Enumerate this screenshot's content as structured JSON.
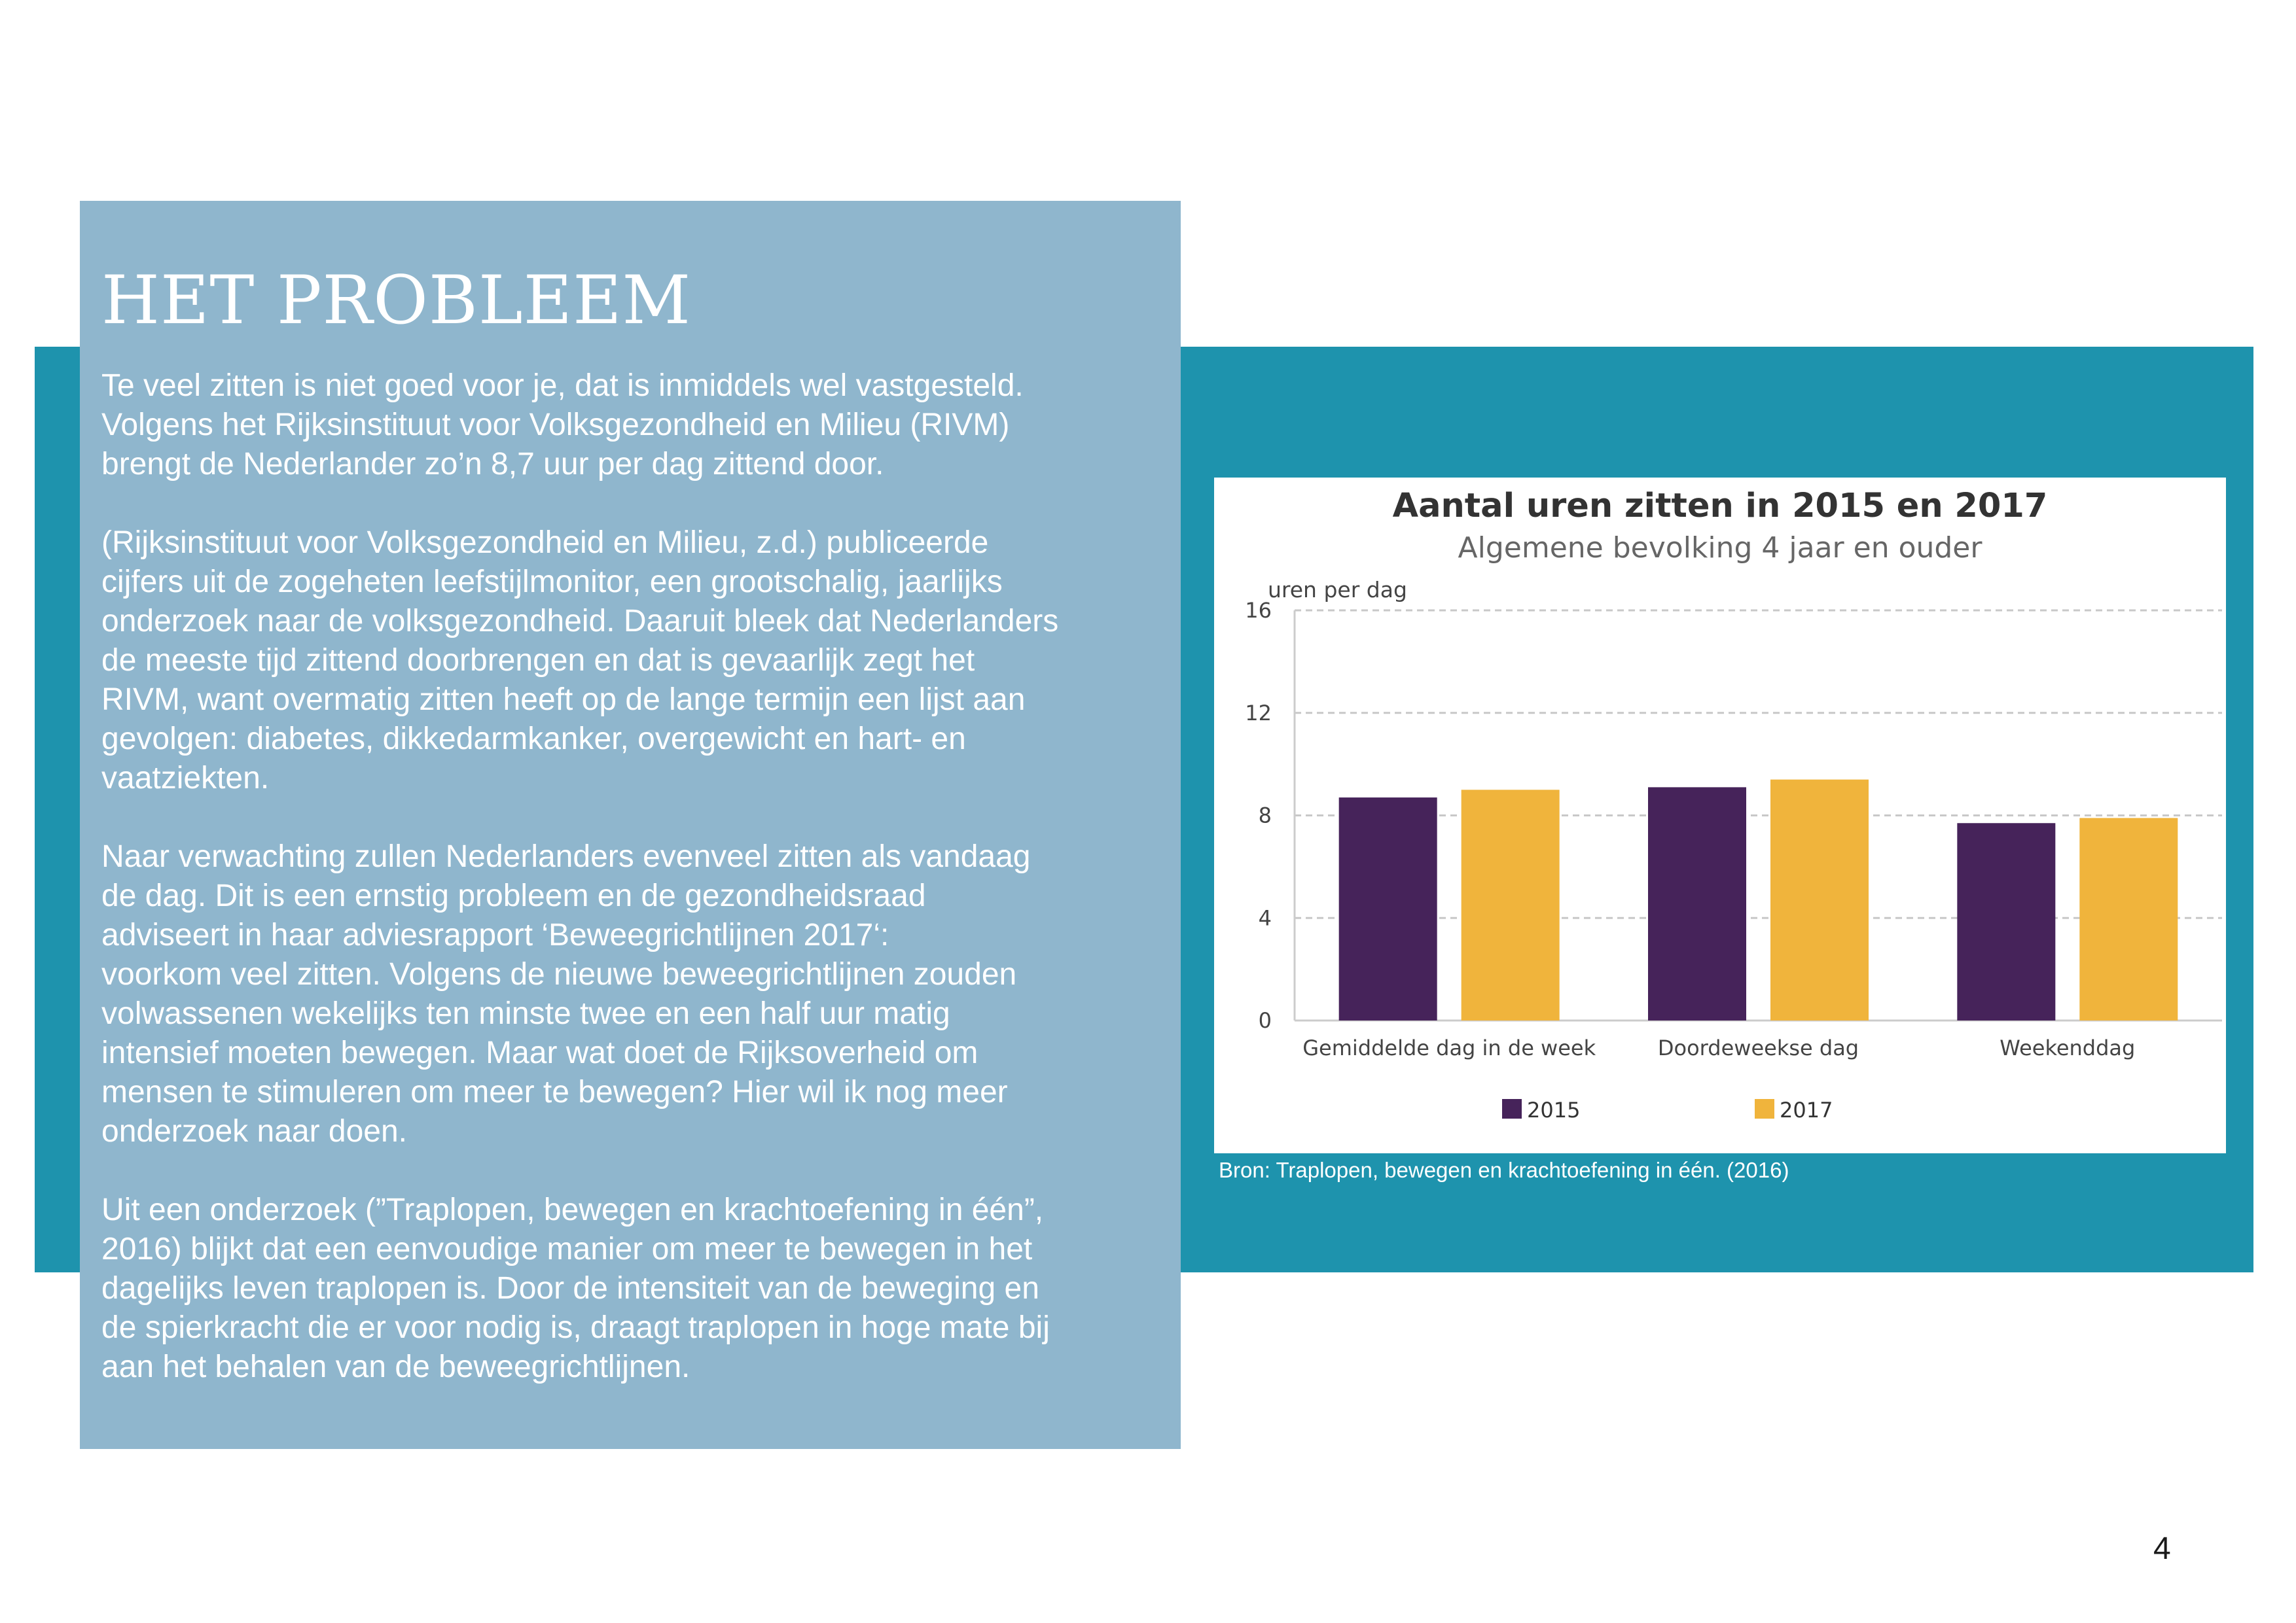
{
  "section": {
    "heading": "HET PROBLEEM",
    "lines": {
      "l1": "Te veel zitten is niet goed voor je, dat is inmiddels wel vastgesteld.",
      "l2": "Volgens het Rijksinstituut voor Volksgezondheid en Milieu (RIVM)",
      "l3": "brengt de Nederlander zo’n 8,7 uur per dag zittend door.",
      "l4": "(Rijksinstituut voor Volksgezondheid en Milieu, z.d.) publiceerde",
      "l5": "cijfers uit de zogeheten leefstijlmonitor, een grootschalig, jaarlijks",
      "l6": "onderzoek naar de volksgezondheid. Daaruit bleek dat Nederlanders",
      "l7": "de meeste tijd zittend doorbrengen en dat is gevaarlijk zegt het",
      "l8": "RIVM, want overmatig zitten heeft op de lange termijn een lijst aan",
      "l9": "gevolgen: diabetes, dikkedarmkanker, overgewicht en hart- en",
      "l10": "vaatziekten.",
      "l11": "Naar verwachting zullen Nederlanders evenveel zitten als vandaag",
      "l12": "de dag. Dit is een ernstig probleem en de gezondheidsraad",
      "l13": "adviseert in haar adviesrapport ‘Beweegrichtlijnen 2017‘:",
      "l14": "voorkom veel zitten. Volgens de nieuwe beweegrichtlijnen zouden",
      "l15": "volwassenen wekelijks ten minste twee en een half uur matig",
      "l16": "intensief moeten bewegen. Maar wat doet de Rijksoverheid om",
      "l17": "mensen te stimuleren om meer te bewegen? Hier wil ik nog meer",
      "l18": "onderzoek naar doen.",
      "l19": "Uit een onderzoek (”Traplopen, bewegen en krachtoefening in één”,",
      "l20": "2016) blijkt dat een eenvoudige manier om meer te bewegen in het",
      "l21": "dagelijks leven traplopen is. Door de intensiteit van de beweging en",
      "l22": "de spierkracht die er voor nodig is, draagt traplopen in hoge mate bij",
      "l23": "aan het behalen van de beweegrichtlijnen."
    }
  },
  "source_caption": "Bron: Traplopen, bewegen en krachtoefening in één. (2016)",
  "page_number": "4",
  "chart_data": {
    "type": "bar",
    "title": "Aantal uren zitten in 2015 en 2017",
    "subtitle": "Algemene bevolking 4 jaar en ouder",
    "xlabel": "",
    "ylabel": "uren per dag",
    "ylim": [
      0,
      16
    ],
    "yticks": [
      0,
      4,
      8,
      12,
      16
    ],
    "grid": true,
    "legend_position": "bottom",
    "categories": [
      "Gemiddelde dag in de week",
      "Doordeweekse dag",
      "Weekenddag"
    ],
    "series": [
      {
        "name": "2015",
        "color": "#46235a",
        "values": [
          8.7,
          9.1,
          7.7
        ]
      },
      {
        "name": "2017",
        "color": "#f0b43c",
        "values": [
          9.0,
          9.4,
          7.9
        ]
      }
    ]
  }
}
